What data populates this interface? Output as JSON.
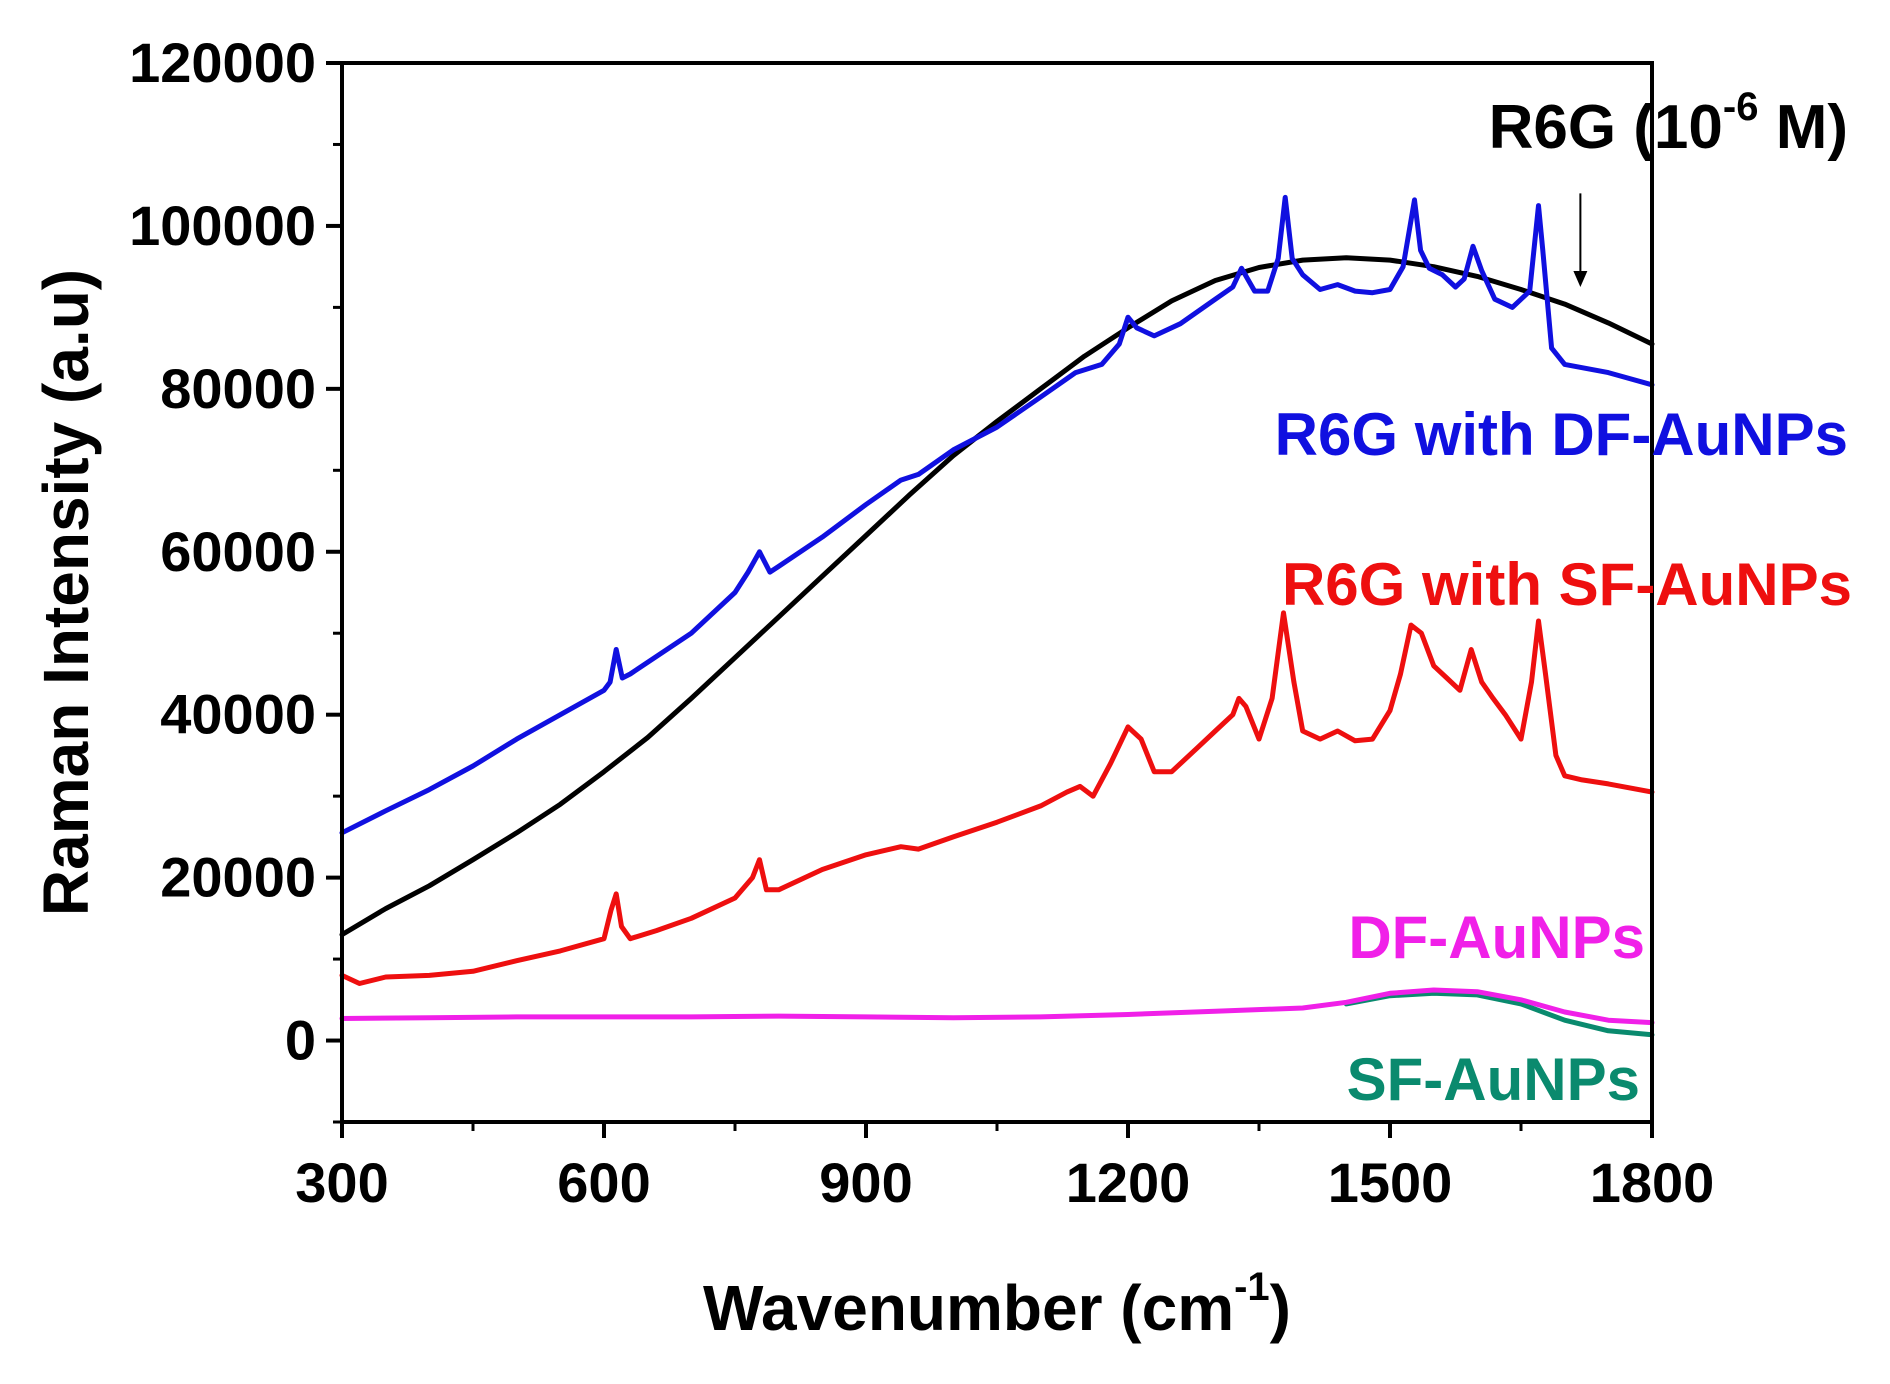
{
  "chart_data": {
    "type": "line",
    "title": "",
    "xlabel": "Wavenumber (cm",
    "xlabel_sup": "-1",
    "xlabel_close": ")",
    "ylabel": "Raman Intensity (a.u)",
    "xlim": [
      300,
      1800
    ],
    "ylim": [
      -10000,
      120000
    ],
    "x_ticks": [
      300,
      600,
      900,
      1200,
      1500,
      1800
    ],
    "y_ticks": [
      0,
      20000,
      40000,
      60000,
      80000,
      100000,
      120000
    ],
    "annotation": {
      "text_before": "R6G (10",
      "text_sup": "-6",
      "text_after": " M)",
      "arrow_x": 1718,
      "arrow_y_from": 104000,
      "arrow_y_to": 92500
    },
    "series": [
      {
        "name": "R6G (10-6 M)",
        "label": "",
        "color": "#000000",
        "x": [
          300,
          350,
          400,
          450,
          500,
          550,
          600,
          650,
          700,
          750,
          800,
          850,
          900,
          950,
          1000,
          1050,
          1100,
          1150,
          1200,
          1250,
          1300,
          1350,
          1400,
          1450,
          1500,
          1550,
          1600,
          1650,
          1700,
          1750,
          1800
        ],
        "y": [
          13000,
          16200,
          19000,
          22200,
          25500,
          29000,
          33000,
          37200,
          42000,
          47000,
          52000,
          57000,
          62000,
          67000,
          71800,
          76000,
          80000,
          84000,
          87500,
          90800,
          93300,
          94900,
          95800,
          96100,
          95800,
          95000,
          93800,
          92200,
          90400,
          88100,
          85500
        ]
      },
      {
        "name": "R6G with DF-AuNPs",
        "label": "R6G with DF-AuNPs",
        "color": "#1010e0",
        "x": [
          300,
          350,
          400,
          450,
          500,
          550,
          600,
          607,
          614,
          621,
          630,
          700,
          750,
          765,
          778,
          790,
          800,
          850,
          900,
          940,
          960,
          1000,
          1050,
          1100,
          1140,
          1170,
          1190,
          1200,
          1210,
          1230,
          1260,
          1300,
          1320,
          1330,
          1345,
          1360,
          1372,
          1380,
          1388,
          1400,
          1420,
          1440,
          1460,
          1480,
          1500,
          1515,
          1528,
          1535,
          1545,
          1560,
          1575,
          1585,
          1595,
          1605,
          1620,
          1640,
          1660,
          1670,
          1675,
          1685,
          1700,
          1750,
          1800
        ],
        "y": [
          25500,
          28200,
          30800,
          33700,
          37000,
          40000,
          43000,
          44000,
          48000,
          44500,
          45000,
          50000,
          55000,
          57500,
          60000,
          57500,
          58200,
          61800,
          65800,
          68800,
          69500,
          72500,
          75300,
          79000,
          82000,
          83000,
          85500,
          88800,
          87500,
          86500,
          88000,
          91000,
          92500,
          94800,
          92000,
          92000,
          96000,
          103500,
          96000,
          94000,
          92200,
          92800,
          92000,
          91800,
          92200,
          95000,
          103200,
          97000,
          94800,
          94000,
          92500,
          93500,
          97500,
          94500,
          91000,
          90000,
          92000,
          102500,
          97000,
          85000,
          83000,
          82000,
          80500
        ]
      },
      {
        "name": "R6G with SF-AuNPs",
        "label": "R6G with SF-AuNPs",
        "color": "#ee0f0f",
        "x": [
          300,
          320,
          350,
          400,
          450,
          500,
          550,
          600,
          608,
          614,
          620,
          630,
          660,
          700,
          750,
          770,
          778,
          786,
          800,
          850,
          900,
          940,
          960,
          1000,
          1050,
          1100,
          1130,
          1145,
          1160,
          1180,
          1200,
          1215,
          1230,
          1250,
          1280,
          1300,
          1320,
          1327,
          1335,
          1350,
          1365,
          1378,
          1390,
          1400,
          1420,
          1440,
          1460,
          1480,
          1500,
          1512,
          1524,
          1536,
          1550,
          1565,
          1580,
          1593,
          1605,
          1618,
          1632,
          1650,
          1662,
          1670,
          1678,
          1690,
          1700,
          1720,
          1750,
          1800
        ],
        "y": [
          8000,
          7000,
          7800,
          8000,
          8500,
          9800,
          11000,
          12500,
          16000,
          18000,
          14000,
          12500,
          13500,
          15000,
          17500,
          20000,
          22200,
          18500,
          18500,
          21000,
          22800,
          23800,
          23500,
          25000,
          26800,
          28800,
          30500,
          31200,
          30000,
          34000,
          38500,
          37000,
          33000,
          33000,
          36000,
          38000,
          40000,
          42000,
          41000,
          37000,
          42000,
          52500,
          44000,
          38000,
          37000,
          38000,
          36800,
          37000,
          40500,
          45000,
          51000,
          50000,
          46000,
          44500,
          43000,
          48000,
          44000,
          42000,
          40000,
          37000,
          44000,
          51500,
          45000,
          35000,
          32500,
          32000,
          31500,
          30500
        ]
      },
      {
        "name": "DF-AuNPs",
        "label": "DF-AuNPs",
        "color": "#f020e8",
        "x": [
          300,
          400,
          500,
          600,
          700,
          800,
          900,
          1000,
          1100,
          1200,
          1300,
          1400,
          1450,
          1500,
          1550,
          1600,
          1650,
          1700,
          1750,
          1800
        ],
        "y": [
          2700,
          2800,
          2900,
          2900,
          2900,
          3000,
          2900,
          2800,
          2900,
          3200,
          3600,
          4000,
          4700,
          5800,
          6200,
          6000,
          5000,
          3500,
          2500,
          2200
        ]
      },
      {
        "name": "SF-AuNPs",
        "label": "SF-AuNPs",
        "color": "#0a8a6e",
        "x": [
          1450,
          1500,
          1550,
          1600,
          1650,
          1700,
          1750,
          1800
        ],
        "y": [
          4500,
          5500,
          5800,
          5600,
          4500,
          2500,
          1200,
          700
        ]
      }
    ]
  }
}
